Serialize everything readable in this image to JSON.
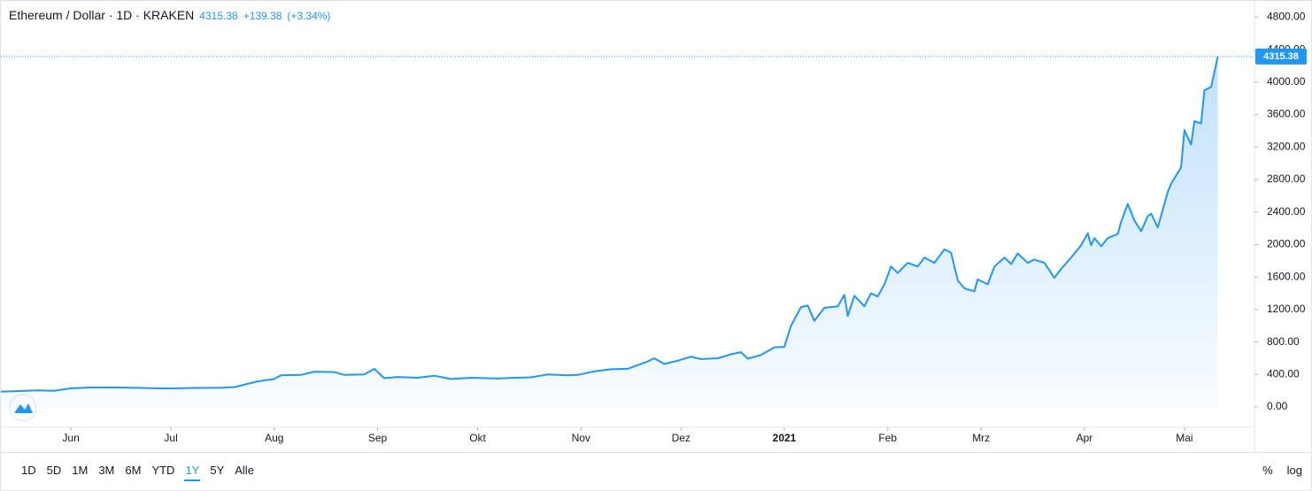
{
  "header": {
    "title": "Ethereum / Dollar · 1D · KRAKEN",
    "change": "+139.38",
    "change_percent": "(+3.34%)"
  },
  "toolbar": {
    "ranges": [
      "1D",
      "5D",
      "1M",
      "3M",
      "6M",
      "YTD",
      "1Y",
      "5Y",
      "Alle"
    ],
    "active_range": 6,
    "percent": "%",
    "log": "log"
  },
  "chart_data": {
    "type": "area",
    "log_scale": false,
    "grid": false,
    "x": [
      0,
      5,
      11,
      16,
      21,
      27,
      35,
      42,
      50,
      58,
      66,
      70,
      77,
      82,
      84,
      90,
      94,
      100,
      103,
      109,
      112,
      115,
      119,
      125,
      130,
      135,
      141,
      149,
      154,
      159,
      164,
      170,
      173,
      178,
      183,
      188,
      194,
      196,
      199,
      203,
      207,
      210,
      215,
      219,
      222,
      224,
      228,
      232,
      235,
      237,
      240,
      242,
      244,
      247,
      251,
      253,
      254,
      256,
      259,
      261,
      263,
      265,
      267,
      269,
      272,
      275,
      277,
      280,
      283,
      285,
      287,
      289,
      292,
      293,
      296,
      298,
      301,
      303,
      305,
      308,
      310,
      313,
      316,
      318,
      321,
      324,
      326,
      327,
      328,
      330,
      332,
      335,
      336,
      338,
      340,
      342,
      344,
      345,
      347,
      350,
      351,
      354,
      355,
      357,
      358,
      360,
      361,
      363,
      365
    ],
    "series": [
      {
        "name": "Ethereum / Dollar",
        "color": "#2196f3",
        "values": [
          190,
          195,
          205,
          200,
          230,
          240,
          240,
          235,
          228,
          235,
          238,
          245,
          315,
          345,
          390,
          395,
          435,
          430,
          395,
          400,
          470,
          355,
          370,
          360,
          385,
          345,
          360,
          350,
          360,
          365,
          400,
          390,
          395,
          440,
          465,
          470,
          560,
          600,
          530,
          570,
          620,
          590,
          600,
          650,
          675,
          595,
          640,
          735,
          740,
          1000,
          1230,
          1250,
          1060,
          1220,
          1240,
          1380,
          1120,
          1370,
          1240,
          1400,
          1360,
          1510,
          1730,
          1650,
          1775,
          1730,
          1840,
          1775,
          1940,
          1900,
          1560,
          1460,
          1425,
          1570,
          1510,
          1730,
          1840,
          1760,
          1890,
          1775,
          1815,
          1775,
          1590,
          1700,
          1840,
          1990,
          2140,
          1990,
          2080,
          1980,
          2080,
          2130,
          2280,
          2500,
          2295,
          2165,
          2350,
          2380,
          2210,
          2650,
          2750,
          2950,
          3410,
          3230,
          3520,
          3490,
          3900,
          3940,
          4315.38
        ]
      }
    ],
    "xlim": [
      0,
      376
    ],
    "xticks": [
      {
        "value": 21,
        "label": "Jun"
      },
      {
        "value": 51,
        "label": "Jul"
      },
      {
        "value": 82,
        "label": "Aug"
      },
      {
        "value": 113,
        "label": "Sep"
      },
      {
        "value": 143,
        "label": "Okt"
      },
      {
        "value": 174,
        "label": "Nov"
      },
      {
        "value": 204,
        "label": "Dez"
      },
      {
        "value": 235,
        "label": "2021"
      },
      {
        "value": 266,
        "label": "Feb"
      },
      {
        "value": 294,
        "label": "Mrz"
      },
      {
        "value": 325,
        "label": "Apr"
      },
      {
        "value": 355,
        "label": "Mai"
      }
    ],
    "ylim": [
      -250,
      5000
    ],
    "yticks": [
      {
        "value": 0,
        "label": "0.00"
      },
      {
        "value": 400,
        "label": "400.00"
      },
      {
        "value": 800,
        "label": "800.00"
      },
      {
        "value": 1200,
        "label": "1200.00"
      },
      {
        "value": 1600,
        "label": "1600.00"
      },
      {
        "value": 2000,
        "label": "2000.00"
      },
      {
        "value": 2400,
        "label": "2400.00"
      },
      {
        "value": 2800,
        "label": "2800.00"
      },
      {
        "value": 3200,
        "label": "3200.00"
      },
      {
        "value": 3600,
        "label": "3600.00"
      },
      {
        "value": 4000,
        "label": "4000.00"
      },
      {
        "value": 4400,
        "label": "4400.00"
      },
      {
        "value": 4800,
        "label": "4800.00"
      }
    ]
  }
}
